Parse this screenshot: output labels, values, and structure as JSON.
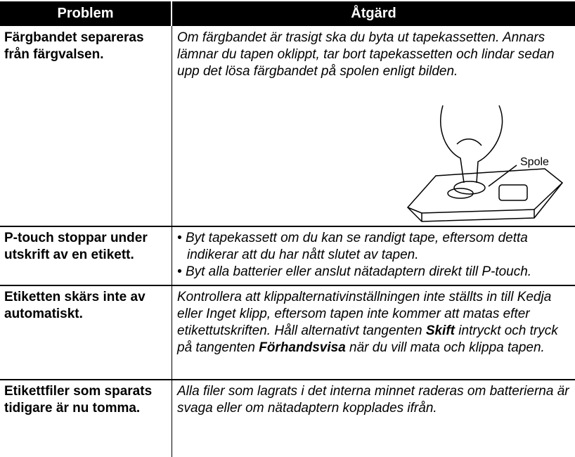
{
  "table": {
    "header": [
      "Problem",
      "Åtgärd"
    ],
    "rows": [
      {
        "problem": "Färgbandet separeras från färgvalsen.",
        "solution": [
          "Om färgbandet är trasigt ska du byta ut tapekassetten. Annars lämnar du tapen oklippt, tar bort tapekassetten och lindar sedan upp det lösa färgbandet på spolen enligt bilden."
        ]
      },
      {
        "problem": "P-touch stoppar under utskrift av en etikett.",
        "bullets": [
          "Byt tapekassett om du kan se randigt tape, eftersom detta indikerar att du har nått slutet av tapen.",
          "Byt alla batterier eller anslut nätadaptern direkt till P-touch."
        ]
      },
      {
        "problem": "Etiketten skärs inte av automatiskt.",
        "solution": [
          "Kontrollera att klippalternativinställningen inte ställts in till Kedja eller Inget klipp, eftersom tapen inte kommer att matas efter etikettutskriften. Håll alternativt tangenten ",
          "Skift",
          " intryckt och tryck på tangenten ",
          "Förhandsvisa",
          " när du vill mata och klippa tapen."
        ]
      },
      {
        "problem": "Etikettfiler som sparats tidigare är nu tomma.",
        "solution": [
          "Alla filer som lagrats i det interna minnet raderas om batterierna är svaga eller om nätadaptern kopplades ifrån."
        ]
      }
    ]
  },
  "figure": {
    "label": "Spole"
  }
}
